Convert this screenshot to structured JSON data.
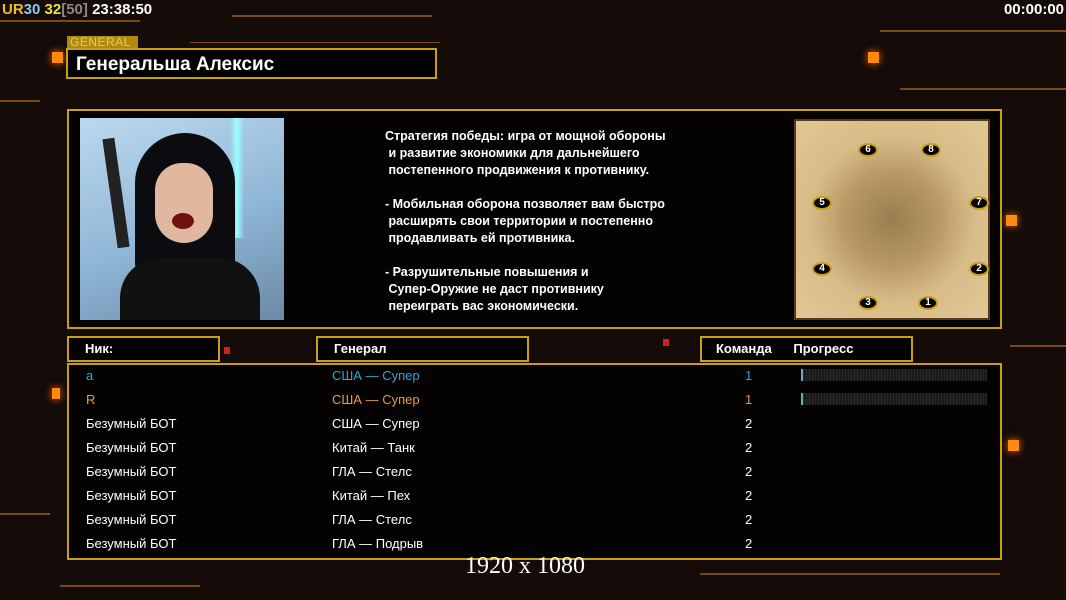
{
  "topbar": {
    "ur": "UR",
    "fps": "30",
    "count": "32",
    "limit": "[50]",
    "clock": "23:38:50",
    "timer": "00:00:00"
  },
  "general": {
    "tab_label": "GENERAL",
    "name": "Генеральша Алексис",
    "description": "Стратегия победы: игра от мощной обороны\n и развитие экономики для дальнейшего\n постепенного продвижения к противнику.\n\n- Мобильная оборона позволяет вам быстро\n расширять свои территории и постепенно\n продавливать ей противника.\n\n- Разрушительные повышения и\n Супер-Оружие не даст противнику\n переиграть вас экономически."
  },
  "map": {
    "start_positions": [
      "1",
      "2",
      "3",
      "4",
      "5",
      "6",
      "7",
      "8"
    ]
  },
  "headers": {
    "nick": "Ник:",
    "general": "Генерал",
    "team": "Команда",
    "progress": "Прогресс"
  },
  "players": [
    {
      "nick": "a",
      "general": "США — Супер",
      "team": "1",
      "progress": 0.01,
      "color": "#2aa8dc"
    },
    {
      "nick": "R",
      "general": "США — Супер",
      "team": "1",
      "progress": 0.01,
      "color": "#e89a38"
    },
    {
      "nick": "Безумный БОТ",
      "general": "США — Супер",
      "team": "2",
      "color": "#ffffff"
    },
    {
      "nick": "Безумный БОТ",
      "general": "Китай — Танк",
      "team": "2",
      "color": "#ffffff"
    },
    {
      "nick": "Безумный БОТ",
      "general": "ГЛА — Стелс",
      "team": "2",
      "color": "#ffffff"
    },
    {
      "nick": "Безумный БОТ",
      "general": "Китай — Пех",
      "team": "2",
      "color": "#ffffff"
    },
    {
      "nick": "Безумный БОТ",
      "general": "ГЛА — Стелс",
      "team": "2",
      "color": "#ffffff"
    },
    {
      "nick": "Безумный БОТ",
      "general": "ГЛА — Подрыв",
      "team": "2",
      "color": "#ffffff"
    }
  ],
  "resolution": "1920 x 1080",
  "colors": {
    "accent": "#c8a018",
    "player_blue": "#2aa8dc",
    "player_orange": "#e89a38"
  }
}
